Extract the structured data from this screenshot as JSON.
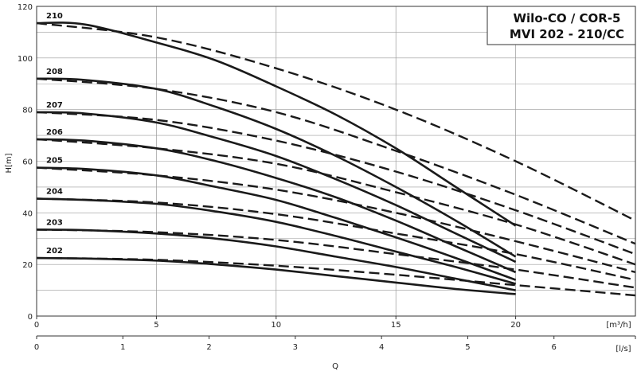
{
  "chart_data": {
    "type": "line",
    "title": [
      "Wilo-CO / COR-5",
      "MVI 202 - 210/CC"
    ],
    "ylabel": "H[m]",
    "xlabel": "Q",
    "x_unit_primary": "[m³/h]",
    "x_unit_secondary": "[l/s]",
    "xlim": [
      0,
      25
    ],
    "ylim": [
      0,
      120
    ],
    "x_ticks": [
      0,
      5,
      10,
      15,
      20
    ],
    "y_ticks": [
      0,
      20,
      40,
      60,
      80,
      100,
      120
    ],
    "x2_ticks": [
      0,
      1,
      2,
      3,
      4,
      5,
      6
    ],
    "x2_factor": 3.6,
    "grid": true,
    "series": [
      {
        "name": "210",
        "solid_end": 20,
        "solid": [
          [
            0,
            113.5
          ],
          [
            2,
            113
          ],
          [
            5,
            106
          ],
          [
            7.5,
            99
          ],
          [
            10,
            89
          ],
          [
            12.5,
            78
          ],
          [
            15,
            65
          ],
          [
            17.5,
            50
          ],
          [
            20,
            35
          ]
        ],
        "dashed": [
          [
            0,
            113.5
          ],
          [
            5,
            108
          ],
          [
            10,
            96
          ],
          [
            15,
            80
          ],
          [
            20,
            60
          ],
          [
            25,
            37
          ]
        ]
      },
      {
        "name": "208",
        "solid_end": 20,
        "solid": [
          [
            0,
            92
          ],
          [
            2,
            91.5
          ],
          [
            5,
            88
          ],
          [
            7.5,
            81
          ],
          [
            10,
            72.5
          ],
          [
            12.5,
            62
          ],
          [
            15,
            50
          ],
          [
            17.5,
            37
          ],
          [
            20,
            23
          ]
        ],
        "dashed": [
          [
            0,
            92
          ],
          [
            5,
            88
          ],
          [
            10,
            79
          ],
          [
            15,
            64
          ],
          [
            20,
            47
          ],
          [
            25,
            28
          ]
        ]
      },
      {
        "name": "207",
        "solid_end": 20,
        "solid": [
          [
            0,
            79
          ],
          [
            2,
            78.5
          ],
          [
            5,
            75
          ],
          [
            7.5,
            69
          ],
          [
            10,
            62
          ],
          [
            12.5,
            53
          ],
          [
            15,
            43
          ],
          [
            17.5,
            32
          ],
          [
            20,
            21
          ]
        ],
        "dashed": [
          [
            0,
            79
          ],
          [
            5,
            76
          ],
          [
            10,
            68
          ],
          [
            15,
            56
          ],
          [
            20,
            41
          ],
          [
            25,
            24
          ]
        ]
      },
      {
        "name": "206",
        "solid_end": 20,
        "solid": [
          [
            0,
            68.5
          ],
          [
            2,
            68
          ],
          [
            5,
            65
          ],
          [
            7.5,
            60
          ],
          [
            10,
            53.5
          ],
          [
            12.5,
            46
          ],
          [
            15,
            37
          ],
          [
            17.5,
            27
          ],
          [
            20,
            17
          ]
        ],
        "dashed": [
          [
            0,
            68.5
          ],
          [
            5,
            65
          ],
          [
            10,
            59
          ],
          [
            15,
            48
          ],
          [
            20,
            35.5
          ],
          [
            25,
            20
          ]
        ]
      },
      {
        "name": "205",
        "solid_end": 20,
        "solid": [
          [
            0,
            57.5
          ],
          [
            2,
            57
          ],
          [
            5,
            54.5
          ],
          [
            7.5,
            50
          ],
          [
            10,
            45
          ],
          [
            12.5,
            38
          ],
          [
            15,
            30.5
          ],
          [
            17.5,
            22.5
          ],
          [
            20,
            14
          ]
        ],
        "dashed": [
          [
            0,
            57.5
          ],
          [
            5,
            54.5
          ],
          [
            10,
            49
          ],
          [
            15,
            40
          ],
          [
            20,
            29
          ],
          [
            25,
            17
          ]
        ]
      },
      {
        "name": "204",
        "solid_end": 20,
        "solid": [
          [
            0,
            45.5
          ],
          [
            2,
            45
          ],
          [
            5,
            43.5
          ],
          [
            7.5,
            40.5
          ],
          [
            10,
            36.5
          ],
          [
            12.5,
            31
          ],
          [
            15,
            25
          ],
          [
            17.5,
            19
          ],
          [
            20,
            12.5
          ]
        ],
        "dashed": [
          [
            0,
            45.5
          ],
          [
            5,
            44
          ],
          [
            10,
            39.5
          ],
          [
            15,
            32
          ],
          [
            20,
            24
          ],
          [
            25,
            14
          ]
        ]
      },
      {
        "name": "203",
        "solid_end": 20,
        "solid": [
          [
            0,
            33.5
          ],
          [
            2,
            33.3
          ],
          [
            5,
            32
          ],
          [
            7.5,
            30
          ],
          [
            10,
            27
          ],
          [
            12.5,
            23
          ],
          [
            15,
            19
          ],
          [
            17.5,
            14.5
          ],
          [
            20,
            10
          ]
        ],
        "dashed": [
          [
            0,
            33.5
          ],
          [
            5,
            32.5
          ],
          [
            10,
            29.5
          ],
          [
            15,
            24
          ],
          [
            20,
            18
          ],
          [
            25,
            11
          ]
        ]
      },
      {
        "name": "202",
        "solid_end": 20,
        "solid": [
          [
            0,
            22.5
          ],
          [
            2,
            22.3
          ],
          [
            5,
            21.5
          ],
          [
            7.5,
            20
          ],
          [
            10,
            18
          ],
          [
            12.5,
            15.5
          ],
          [
            15,
            13
          ],
          [
            17.5,
            10.5
          ],
          [
            20,
            8.5
          ]
        ],
        "dashed": [
          [
            0,
            22.5
          ],
          [
            5,
            21.8
          ],
          [
            10,
            19.5
          ],
          [
            15,
            16
          ],
          [
            20,
            12
          ],
          [
            25,
            8
          ]
        ]
      }
    ]
  }
}
